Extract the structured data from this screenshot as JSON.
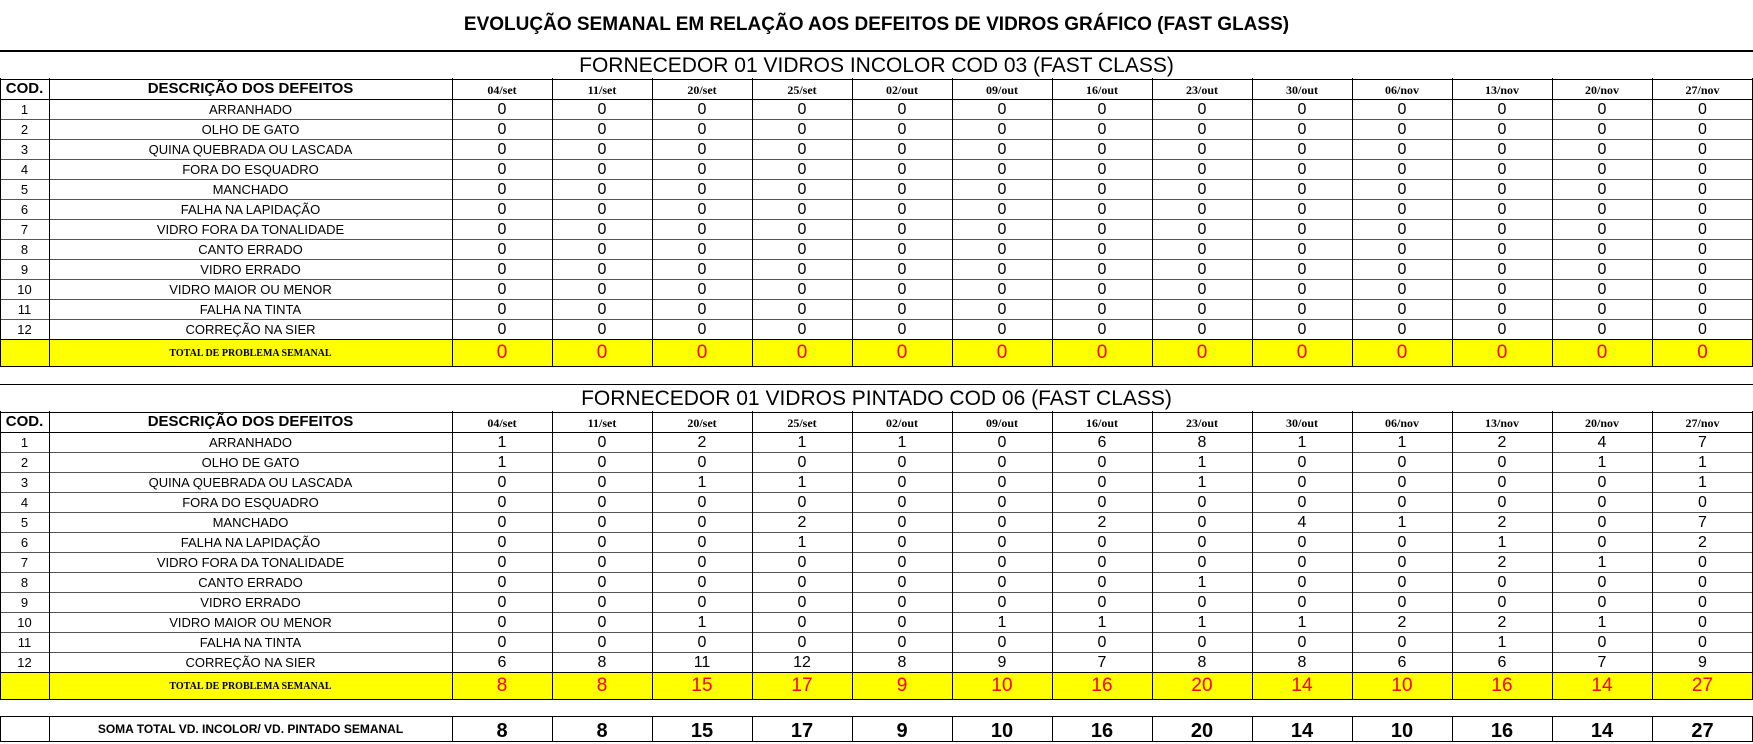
{
  "title": "EVOLUÇÃO SEMANAL EM RELAÇÃO AOS DEFEITOS DE VIDROS GRÁFICO (FAST GLASS)",
  "headers": {
    "cod": "COD.",
    "desc": "DESCRIÇÃO DOS DEFEITOS",
    "weeks": [
      "04/set",
      "11/set",
      "20/set",
      "25/set",
      "02/out",
      "09/out",
      "16/out",
      "23/out",
      "30/out",
      "06/nov",
      "13/nov",
      "20/nov",
      "27/nov"
    ]
  },
  "defects": [
    {
      "cod": "1",
      "desc": "ARRANHADO"
    },
    {
      "cod": "2",
      "desc": "OLHO DE GATO"
    },
    {
      "cod": "3",
      "desc": "QUINA QUEBRADA OU LASCADA"
    },
    {
      "cod": "4",
      "desc": "FORA DO ESQUADRO"
    },
    {
      "cod": "5",
      "desc": "MANCHADO"
    },
    {
      "cod": "6",
      "desc": "FALHA  NA LAPIDAÇÃO"
    },
    {
      "cod": "7",
      "desc": "VIDRO FORA DA TONALIDADE"
    },
    {
      "cod": "8",
      "desc": "CANTO ERRADO"
    },
    {
      "cod": "9",
      "desc": "VIDRO ERRADO"
    },
    {
      "cod": "10",
      "desc": "VIDRO MAIOR OU MENOR"
    },
    {
      "cod": "11",
      "desc": "FALHA NA TINTA"
    },
    {
      "cod": "12",
      "desc": "CORREÇÃO NA SIER"
    }
  ],
  "sections": [
    {
      "title": "FORNECEDOR 01 VIDROS INCOLOR COD 03 (FAST CLASS)",
      "rows": [
        [
          0,
          0,
          0,
          0,
          0,
          0,
          0,
          0,
          0,
          0,
          0,
          0,
          0
        ],
        [
          0,
          0,
          0,
          0,
          0,
          0,
          0,
          0,
          0,
          0,
          0,
          0,
          0
        ],
        [
          0,
          0,
          0,
          0,
          0,
          0,
          0,
          0,
          0,
          0,
          0,
          0,
          0
        ],
        [
          0,
          0,
          0,
          0,
          0,
          0,
          0,
          0,
          0,
          0,
          0,
          0,
          0
        ],
        [
          0,
          0,
          0,
          0,
          0,
          0,
          0,
          0,
          0,
          0,
          0,
          0,
          0
        ],
        [
          0,
          0,
          0,
          0,
          0,
          0,
          0,
          0,
          0,
          0,
          0,
          0,
          0
        ],
        [
          0,
          0,
          0,
          0,
          0,
          0,
          0,
          0,
          0,
          0,
          0,
          0,
          0
        ],
        [
          0,
          0,
          0,
          0,
          0,
          0,
          0,
          0,
          0,
          0,
          0,
          0,
          0
        ],
        [
          0,
          0,
          0,
          0,
          0,
          0,
          0,
          0,
          0,
          0,
          0,
          0,
          0
        ],
        [
          0,
          0,
          0,
          0,
          0,
          0,
          0,
          0,
          0,
          0,
          0,
          0,
          0
        ],
        [
          0,
          0,
          0,
          0,
          0,
          0,
          0,
          0,
          0,
          0,
          0,
          0,
          0
        ],
        [
          0,
          0,
          0,
          0,
          0,
          0,
          0,
          0,
          0,
          0,
          0,
          0,
          0
        ]
      ],
      "total_label": "TOTAL DE PROBLEMA SEMANAL",
      "totals": [
        0,
        0,
        0,
        0,
        0,
        0,
        0,
        0,
        0,
        0,
        0,
        0,
        0
      ]
    },
    {
      "title": "FORNECEDOR 01 VIDROS PINTADO COD 06 (FAST CLASS)",
      "rows": [
        [
          1,
          0,
          2,
          1,
          1,
          0,
          6,
          8,
          1,
          1,
          2,
          4,
          7
        ],
        [
          1,
          0,
          0,
          0,
          0,
          0,
          0,
          1,
          0,
          0,
          0,
          1,
          1
        ],
        [
          0,
          0,
          1,
          1,
          0,
          0,
          0,
          1,
          0,
          0,
          0,
          0,
          1
        ],
        [
          0,
          0,
          0,
          0,
          0,
          0,
          0,
          0,
          0,
          0,
          0,
          0,
          0
        ],
        [
          0,
          0,
          0,
          2,
          0,
          0,
          2,
          0,
          4,
          1,
          2,
          0,
          7
        ],
        [
          0,
          0,
          0,
          1,
          0,
          0,
          0,
          0,
          0,
          0,
          1,
          0,
          2
        ],
        [
          0,
          0,
          0,
          0,
          0,
          0,
          0,
          0,
          0,
          0,
          2,
          1,
          0
        ],
        [
          0,
          0,
          0,
          0,
          0,
          0,
          0,
          1,
          0,
          0,
          0,
          0,
          0
        ],
        [
          0,
          0,
          0,
          0,
          0,
          0,
          0,
          0,
          0,
          0,
          0,
          0,
          0
        ],
        [
          0,
          0,
          1,
          0,
          0,
          1,
          1,
          1,
          1,
          2,
          2,
          1,
          0
        ],
        [
          0,
          0,
          0,
          0,
          0,
          0,
          0,
          0,
          0,
          0,
          1,
          0,
          0
        ],
        [
          6,
          8,
          11,
          12,
          8,
          9,
          7,
          8,
          8,
          6,
          6,
          7,
          9
        ]
      ],
      "total_label": "TOTAL DE PROBLEMA SEMANAL",
      "totals": [
        8,
        8,
        15,
        17,
        9,
        10,
        16,
        20,
        14,
        10,
        16,
        14,
        27
      ]
    }
  ],
  "summary": {
    "label": "SOMA TOTAL VD. INCOLOR/ VD. PINTADO SEMANAL",
    "values": [
      8,
      8,
      15,
      17,
      9,
      10,
      16,
      20,
      14,
      10,
      16,
      14,
      27
    ]
  },
  "colors": {
    "highlight": "#ffff00",
    "total_text": "#ff0000"
  }
}
